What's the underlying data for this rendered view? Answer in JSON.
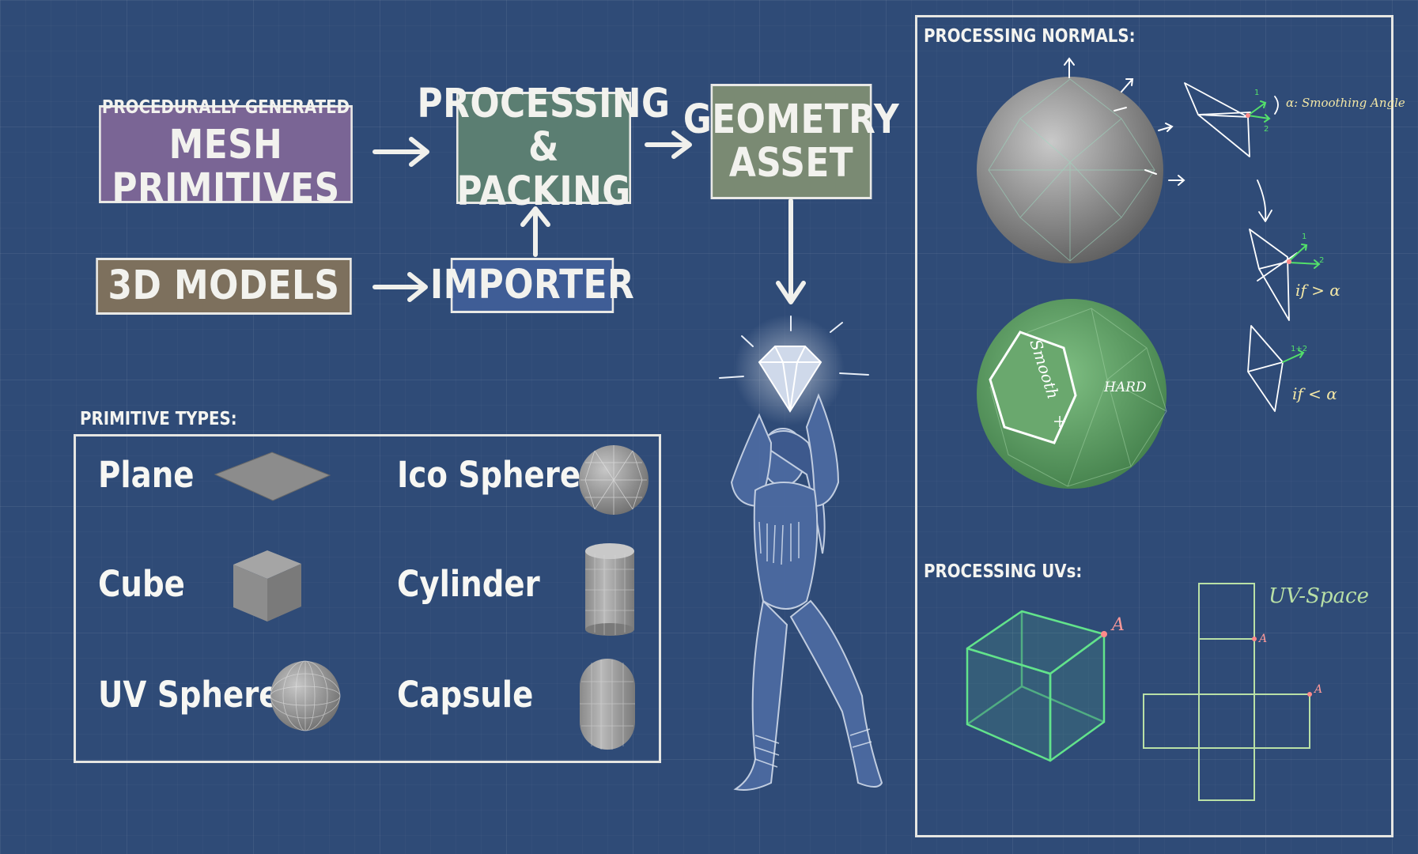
{
  "pipeline": {
    "procedural_small": "PROCEDURALLY GENERATED",
    "procedural_big": "MESH PRIMITIVES",
    "processing_line1": "PROCESSING",
    "processing_line2": "& PACKING",
    "geometry_line1": "GEOMETRY",
    "geometry_line2": "ASSET",
    "models": "3D MODELS",
    "importer": "IMPORTER"
  },
  "primitive_types": {
    "heading": "PRIMITIVE TYPES:",
    "items": [
      "Plane",
      "Ico Sphere",
      "Cube",
      "Cylinder",
      "UV Sphere",
      "Capsule"
    ]
  },
  "normals": {
    "heading": "PROCESSING NORMALS:",
    "smooth_label": "Smooth",
    "hard_label": "HARD",
    "alpha_label": "α: Smoothing Angle",
    "cond_greater": "if > α",
    "cond_less": "if < α",
    "n1": "1",
    "n2": "2",
    "n12": "1+2"
  },
  "uvs": {
    "heading": "PROCESSING UVs:",
    "space_label": "UV-Space",
    "vertex_label": "A"
  },
  "colors": {
    "background": "#2f4b77",
    "procedural_fill": "#7a6595",
    "processing_fill": "#5b7e72",
    "geometry_fill": "#7a8a73",
    "models_fill": "#7d705d",
    "importer_fill": "#3f5d96",
    "green_mesh": "#5e9a62",
    "uv_line": "#b9e0a6"
  }
}
